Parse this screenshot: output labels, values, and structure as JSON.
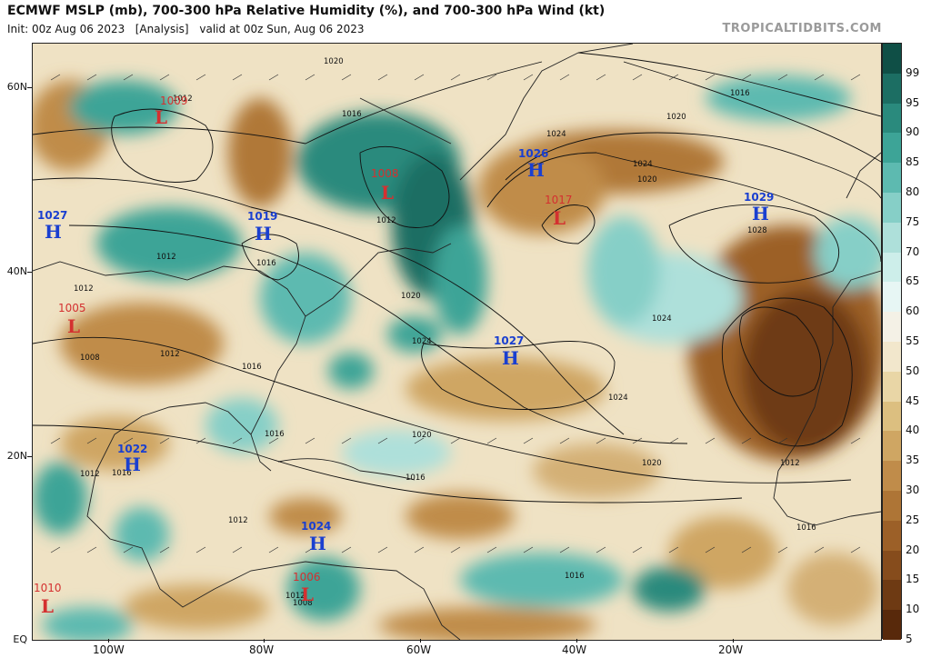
{
  "header": {
    "title": "ECMWF MSLP (mb), 700-300 hPa Relative Humidity (%), and 700-300 hPa Wind (kt)",
    "init": "Init: 00z Aug 06 2023",
    "analysis": "[Analysis]",
    "valid": "valid at 00z Sun, Aug 06 2023",
    "credit": "TROPICALTIDBITS.COM"
  },
  "axes": {
    "lat_labels": [
      "60N",
      "40N",
      "20N",
      "EQ"
    ],
    "lon_labels": [
      "100W",
      "80W",
      "60W",
      "40W",
      "20W"
    ]
  },
  "colorbar": {
    "labels": [
      "99",
      "95",
      "90",
      "85",
      "80",
      "75",
      "70",
      "65",
      "60",
      "55",
      "50",
      "45",
      "40",
      "35",
      "30",
      "25",
      "20",
      "15",
      "10",
      "5"
    ],
    "colors": [
      "#0f4f46",
      "#1c6e63",
      "#2a8a7d",
      "#3da497",
      "#5dbab0",
      "#86cfc7",
      "#aee0da",
      "#cdeeea",
      "#e7f6f4",
      "#f4f1e6",
      "#f2e7cc",
      "#e9d6a6",
      "#dcbf80",
      "#cfa663",
      "#c08c4a",
      "#ae7536",
      "#9c6028",
      "#864c1c",
      "#6e3a13",
      "#58290b"
    ]
  },
  "pressure_centers": [
    {
      "type": "L",
      "value": "1009"
    },
    {
      "type": "L",
      "value": "1008"
    },
    {
      "type": "H",
      "value": "1026"
    },
    {
      "type": "L",
      "value": "1017"
    },
    {
      "type": "H",
      "value": "1029"
    },
    {
      "type": "H",
      "value": "1027"
    },
    {
      "type": "H",
      "value": "1019"
    },
    {
      "type": "L",
      "value": "1005"
    },
    {
      "type": "H",
      "value": "1027"
    },
    {
      "type": "H",
      "value": "1022"
    },
    {
      "type": "H",
      "value": "1024"
    },
    {
      "type": "L",
      "value": "1006"
    },
    {
      "type": "L",
      "value": "1010"
    }
  ],
  "isobar_labels": [
    "1020",
    "1016",
    "1024",
    "1020",
    "1016",
    "1012",
    "1020",
    "1024",
    "1028",
    "1012",
    "1016",
    "1020",
    "1012",
    "1008",
    "1012",
    "1016",
    "1024",
    "1024",
    "1024",
    "1016",
    "1020",
    "1020",
    "1016",
    "1012",
    "1012",
    "1016",
    "1016",
    "1016",
    "1012",
    "1012",
    "1008",
    "1012"
  ]
}
